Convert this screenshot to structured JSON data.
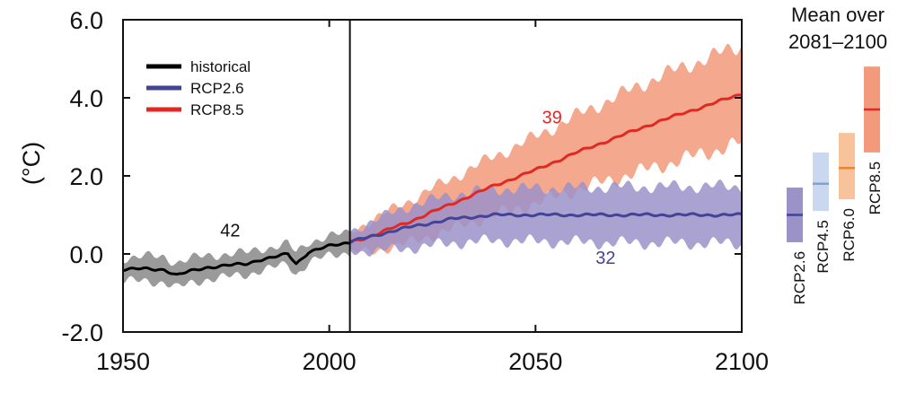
{
  "chart_data": {
    "type": "line",
    "title": "",
    "xlabel": "",
    "ylabel": "(°C)",
    "xlim": [
      1950,
      2100
    ],
    "ylim": [
      -2.0,
      6.0
    ],
    "x_ticks": [
      "1950",
      "2000",
      "2050",
      "2100"
    ],
    "y_ticks": [
      "6.0",
      "4.0",
      "2.0",
      "0.0",
      "-2.0"
    ],
    "divider_year": 2005,
    "legend_position": "top-left",
    "series": [
      {
        "name": "historical",
        "color": "#000000",
        "band_color": "#9a9a9a",
        "count_label": "42",
        "points": [
          [
            1950,
            -0.4,
            0.3
          ],
          [
            1955,
            -0.38,
            0.32
          ],
          [
            1960,
            -0.4,
            0.32
          ],
          [
            1963,
            -0.55,
            0.33
          ],
          [
            1966,
            -0.45,
            0.32
          ],
          [
            1970,
            -0.35,
            0.3
          ],
          [
            1975,
            -0.3,
            0.3
          ],
          [
            1980,
            -0.25,
            0.28
          ],
          [
            1983,
            -0.15,
            0.28
          ],
          [
            1986,
            -0.1,
            0.27
          ],
          [
            1990,
            0.0,
            0.26
          ],
          [
            1992,
            -0.25,
            0.28
          ],
          [
            1995,
            0.05,
            0.26
          ],
          [
            2000,
            0.2,
            0.25
          ],
          [
            2005,
            0.3,
            0.25
          ]
        ]
      },
      {
        "name": "RCP2.6",
        "color": "#434398",
        "band_color": "#9b92c8",
        "count_label": "32",
        "points": [
          [
            2005,
            0.3,
            0.25
          ],
          [
            2010,
            0.45,
            0.38
          ],
          [
            2020,
            0.7,
            0.55
          ],
          [
            2030,
            0.9,
            0.62
          ],
          [
            2040,
            1.0,
            0.66
          ],
          [
            2050,
            1.0,
            0.68
          ],
          [
            2060,
            1.0,
            0.7
          ],
          [
            2070,
            1.0,
            0.72
          ],
          [
            2080,
            1.0,
            0.72
          ],
          [
            2090,
            1.0,
            0.73
          ],
          [
            2100,
            1.0,
            0.73
          ]
        ]
      },
      {
        "name": "RCP8.5",
        "color": "#e22823",
        "band_color": "#f29a7b",
        "count_label": "39",
        "points": [
          [
            2005,
            0.3,
            0.25
          ],
          [
            2010,
            0.45,
            0.4
          ],
          [
            2020,
            0.85,
            0.55
          ],
          [
            2030,
            1.3,
            0.65
          ],
          [
            2040,
            1.75,
            0.75
          ],
          [
            2050,
            2.15,
            0.85
          ],
          [
            2060,
            2.6,
            0.95
          ],
          [
            2070,
            3.0,
            1.05
          ],
          [
            2080,
            3.4,
            1.15
          ],
          [
            2090,
            3.75,
            1.2
          ],
          [
            2100,
            4.1,
            1.25
          ]
        ]
      }
    ],
    "period_means": {
      "title_line1": "Mean over",
      "title_line2": "2081–2100",
      "bars": [
        {
          "name": "RCP2.6",
          "mean": 1.0,
          "low": 0.3,
          "high": 1.7,
          "band_color": "#9b92c8",
          "line_color": "#434398"
        },
        {
          "name": "RCP4.5",
          "mean": 1.8,
          "low": 1.1,
          "high": 2.6,
          "band_color": "#c9d8ee",
          "line_color": "#7fa2d6"
        },
        {
          "name": "RCP6.0",
          "mean": 2.2,
          "low": 1.4,
          "high": 3.1,
          "band_color": "#f8c39a",
          "line_color": "#e98435"
        },
        {
          "name": "RCP8.5",
          "mean": 3.7,
          "low": 2.6,
          "high": 4.8,
          "band_color": "#f29a7b",
          "line_color": "#e22823"
        }
      ]
    }
  }
}
